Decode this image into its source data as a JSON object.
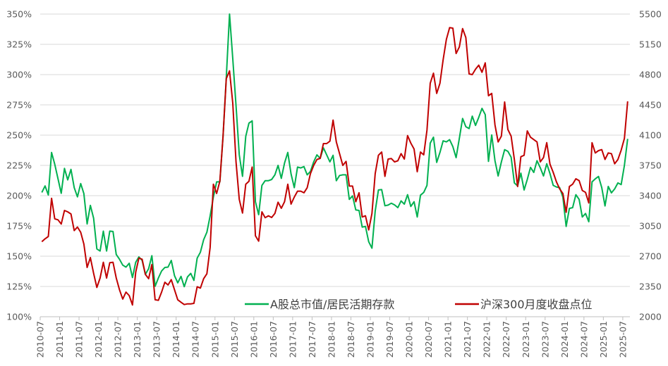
{
  "chart_data": {
    "type": "line",
    "title": "",
    "xlabel": "",
    "ylabel_left": "",
    "ylabel_right": "",
    "grid": true,
    "legend_position": "bottom-inside",
    "y_left": {
      "min": 100,
      "max": 350,
      "step": 25,
      "unit": "%",
      "ticks": [
        "100%",
        "125%",
        "150%",
        "175%",
        "200%",
        "225%",
        "250%",
        "275%",
        "300%",
        "325%",
        "350%"
      ]
    },
    "y_right": {
      "min": 2000,
      "max": 5500,
      "step": 350,
      "ticks": [
        "2000",
        "2350",
        "2700",
        "3050",
        "3400",
        "3750",
        "4100",
        "4450",
        "4800",
        "5150",
        "5500"
      ]
    },
    "x_tick_labels": [
      "2010-07",
      "2011-01",
      "2011-07",
      "2012-01",
      "2012-07",
      "2013-01",
      "2013-07",
      "2014-01",
      "2014-07",
      "2015-01",
      "2015-07",
      "2016-01",
      "2016-07",
      "2017-01",
      "2017-07",
      "2018-01",
      "2018-07",
      "2019-01",
      "2019-07",
      "2020-01",
      "2020-07",
      "2021-01",
      "2021-07",
      "2022-01",
      "2022-07",
      "2023-01",
      "2023-07",
      "2024-01",
      "2024-07",
      "2025-01",
      "2025-07"
    ],
    "x": [
      "2010-07",
      "2010-08",
      "2010-09",
      "2010-10",
      "2010-11",
      "2010-12",
      "2011-01",
      "2011-02",
      "2011-03",
      "2011-04",
      "2011-05",
      "2011-06",
      "2011-07",
      "2011-08",
      "2011-09",
      "2011-10",
      "2011-11",
      "2011-12",
      "2012-01",
      "2012-02",
      "2012-03",
      "2012-04",
      "2012-05",
      "2012-06",
      "2012-07",
      "2012-08",
      "2012-09",
      "2012-10",
      "2012-11",
      "2012-12",
      "2013-01",
      "2013-02",
      "2013-03",
      "2013-04",
      "2013-05",
      "2013-06",
      "2013-07",
      "2013-08",
      "2013-09",
      "2013-10",
      "2013-11",
      "2013-12",
      "2014-01",
      "2014-02",
      "2014-03",
      "2014-04",
      "2014-05",
      "2014-06",
      "2014-07",
      "2014-08",
      "2014-09",
      "2014-10",
      "2014-11",
      "2014-12",
      "2015-01",
      "2015-02",
      "2015-03",
      "2015-04",
      "2015-05",
      "2015-06",
      "2015-07",
      "2015-08",
      "2015-09",
      "2015-10",
      "2015-11",
      "2015-12",
      "2016-01",
      "2016-02",
      "2016-03",
      "2016-04",
      "2016-05",
      "2016-06",
      "2016-07",
      "2016-08",
      "2016-09",
      "2016-10",
      "2016-11",
      "2016-12",
      "2017-01",
      "2017-02",
      "2017-03",
      "2017-04",
      "2017-05",
      "2017-06",
      "2017-07",
      "2017-08",
      "2017-09",
      "2017-10",
      "2017-11",
      "2017-12",
      "2018-01",
      "2018-02",
      "2018-03",
      "2018-04",
      "2018-05",
      "2018-06",
      "2018-07",
      "2018-08",
      "2018-09",
      "2018-10",
      "2018-11",
      "2018-12",
      "2019-01",
      "2019-02",
      "2019-03",
      "2019-04",
      "2019-05",
      "2019-06",
      "2019-07",
      "2019-08",
      "2019-09",
      "2019-10",
      "2019-11",
      "2019-12",
      "2020-01",
      "2020-02",
      "2020-03",
      "2020-04",
      "2020-05",
      "2020-06",
      "2020-07",
      "2020-08",
      "2020-09",
      "2020-10",
      "2020-11",
      "2020-12",
      "2021-01",
      "2021-02",
      "2021-03",
      "2021-04",
      "2021-05",
      "2021-06",
      "2021-07",
      "2021-08",
      "2021-09",
      "2021-10",
      "2021-11",
      "2021-12",
      "2022-01",
      "2022-02",
      "2022-03",
      "2022-04",
      "2022-05",
      "2022-06",
      "2022-07",
      "2022-08",
      "2022-09",
      "2022-10",
      "2022-11",
      "2022-12",
      "2023-01",
      "2023-02",
      "2023-03",
      "2023-04",
      "2023-05",
      "2023-06",
      "2023-07",
      "2023-08",
      "2023-09",
      "2023-10",
      "2023-11",
      "2023-12",
      "2024-01",
      "2024-02",
      "2024-03",
      "2024-04",
      "2024-05",
      "2024-06",
      "2024-07",
      "2024-08",
      "2024-09",
      "2024-10",
      "2024-11",
      "2024-12",
      "2025-01",
      "2025-02",
      "2025-03",
      "2025-04",
      "2025-05",
      "2025-06",
      "2025-07",
      "2025-08"
    ],
    "series": [
      {
        "name": "A股总市值/居民活期存款",
        "axis": "left",
        "color": "#00b050",
        "values": [
          202.7,
          208,
          200.6,
          235.7,
          226,
          214,
          202,
          222.5,
          213,
          221.7,
          206.6,
          199,
          210,
          201.7,
          176.6,
          192,
          181.4,
          156,
          154.3,
          170.7,
          154.3,
          170.7,
          170.4,
          151.4,
          147.5,
          142.6,
          141,
          144.2,
          132.4,
          145,
          149.4,
          146.5,
          135,
          139.7,
          150.4,
          125.2,
          132,
          137.8,
          140.7,
          141,
          146.5,
          133.9,
          128,
          133.3,
          124.8,
          132.9,
          135.8,
          130,
          148.4,
          153.3,
          163.6,
          169.8,
          183.3,
          198.8,
          211.4,
          211.4,
          249,
          297.7,
          350,
          313,
          274.4,
          233.7,
          216,
          249,
          259.9,
          261.8,
          195,
          184.3,
          208.5,
          212.4,
          212.4,
          213.4,
          217.2,
          225,
          214.3,
          227,
          235.7,
          218,
          206.6,
          223.6,
          222.9,
          224,
          217.2,
          220,
          227.9,
          233.7,
          230.8,
          239.5,
          233.7,
          227.9,
          233.3,
          212.4,
          216.7,
          217.2,
          217.2,
          196.9,
          199.8,
          188.2,
          187.8,
          174,
          174.6,
          162,
          156.6,
          187.2,
          204.7,
          205,
          191.7,
          192.2,
          193.8,
          192.4,
          190.1,
          195.7,
          193,
          200.8,
          191.1,
          195,
          182.4,
          200.4,
          202.7,
          208.5,
          243.4,
          248.3,
          227.5,
          235.7,
          245.3,
          244.4,
          246.3,
          240.5,
          231.4,
          247.3,
          263.8,
          257,
          255.4,
          265.7,
          258,
          264.7,
          272.1,
          267,
          228.3,
          250.2,
          228.9,
          216.3,
          227.9,
          238,
          236.6,
          231.8,
          210.5,
          208.1,
          218.6,
          204.7,
          213.4,
          223.4,
          219.2,
          228.9,
          223.1,
          216.3,
          226.4,
          218.2,
          208.5,
          207.2,
          206.6,
          198.8,
          174.6,
          189.5,
          190.1,
          200.8,
          196.9,
          182.4,
          185.3,
          178.5,
          211.4,
          213.9,
          215.9,
          206.6,
          191.5,
          207.6,
          202.3,
          205.6,
          210.5,
          209.1,
          225,
          246.9
        ]
      },
      {
        "name": "沪深300月度收盘点位",
        "axis": "right",
        "color": "#c00000",
        "values": [
          2868,
          2901,
          2928,
          3370,
          3132,
          3121,
          3072,
          3229,
          3213,
          3188,
          2996,
          3037,
          2977,
          2841,
          2570,
          2684,
          2502,
          2339,
          2448,
          2630,
          2448,
          2624,
          2630,
          2448,
          2312,
          2204,
          2285,
          2244,
          2136,
          2516,
          2678,
          2665,
          2489,
          2440,
          2603,
          2196,
          2190,
          2285,
          2399,
          2367,
          2429,
          2312,
          2196,
          2168,
          2141,
          2149,
          2149,
          2155,
          2347,
          2331,
          2440,
          2497,
          2801,
          3533,
          3425,
          3568,
          4089,
          4754,
          4843,
          4469,
          3791,
          3357,
          3199,
          3533,
          3566,
          3731,
          2936,
          2874,
          3213,
          3145,
          3167,
          3148,
          3194,
          3324,
          3254,
          3330,
          3533,
          3302,
          3384,
          3452,
          3452,
          3433,
          3492,
          3655,
          3750,
          3818,
          3831,
          4002,
          4002,
          4030,
          4274,
          4021,
          3886,
          3750,
          3796,
          3511,
          3511,
          3330,
          3433,
          3153,
          3167,
          3004,
          3194,
          3655,
          3867,
          3905,
          3623,
          3823,
          3829,
          3791,
          3804,
          3886,
          3823,
          4095,
          4008,
          3940,
          3677,
          3905,
          3872,
          4157,
          4700,
          4816,
          4583,
          4700,
          4971,
          5207,
          5343,
          5337,
          5044,
          5120,
          5332,
          5229,
          4808,
          4800,
          4862,
          4909,
          4827,
          4936,
          4556,
          4583,
          4219,
          4021,
          4089,
          4483,
          4165,
          4089,
          3818,
          3506,
          3850,
          3867,
          4149,
          4076,
          4049,
          4021,
          3791,
          3840,
          4013,
          3764,
          3669,
          3560,
          3479,
          3425,
          3208,
          3506,
          3533,
          3595,
          3574,
          3460,
          3438,
          3316,
          4013,
          3894,
          3921,
          3932,
          3818,
          3894,
          3886,
          3769,
          3818,
          3926,
          4062,
          4491
        ]
      }
    ]
  }
}
